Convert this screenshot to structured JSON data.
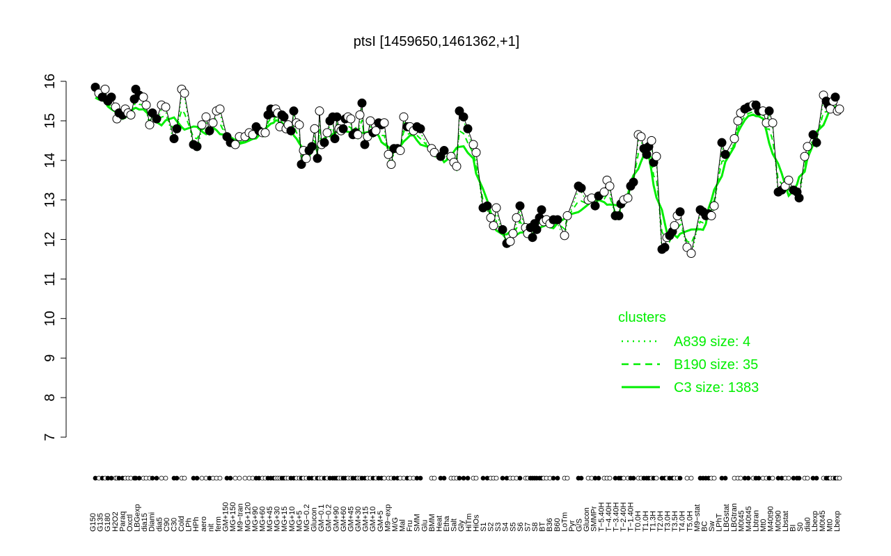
{
  "chart_data": {
    "type": "line",
    "title": "ptsI [1459650,1461362,+1]",
    "ylim": [
      7,
      16
    ],
    "yticks": [
      7,
      8,
      9,
      10,
      11,
      12,
      13,
      14,
      15,
      16
    ],
    "xlabels": [
      "G150",
      "G135",
      "G180",
      "H2O2",
      "Paraq",
      "Oxctl",
      "LBGexp",
      "dia15",
      "Diami",
      "dia5",
      "C90",
      "C30",
      "Cold",
      "LPh",
      "HPh",
      "aero",
      "nit",
      "ferm",
      "GM+150",
      "MG+150",
      "M9−tran",
      "MG+120",
      "MG+90",
      "MG+60",
      "MG+45",
      "MG+30",
      "MG+15",
      "MG+10",
      "MG+5",
      "MG−0.2",
      "Glucon",
      "GM−0.1",
      "GM−0.2",
      "GM+90",
      "GM+60",
      "GM+45",
      "GM+30",
      "GM+15",
      "GM+10",
      "GM+5",
      "M9−exp",
      "M/G",
      "Mal",
      "Fru",
      "SMM",
      "Glu",
      "BMM",
      "Heat",
      "Etha",
      "Salt",
      "Gly",
      "HiTm",
      "HiOs",
      "S1",
      "S2",
      "S3",
      "S4",
      "S5",
      "S6",
      "S7",
      "S8",
      "BT",
      "B36",
      "B60",
      "LoTm",
      "Pyr",
      "G/S",
      "Glucon",
      "SMMPr",
      "T−5.40H",
      "T−4.40H",
      "T−3.40H",
      "T−2.40H",
      "T−1.40H",
      "T0.0H",
      "T1.0H",
      "T1.3H",
      "T2.0H",
      "T3.0H",
      "T3.5H",
      "T4.0H",
      "T5.0H",
      "M9−stat",
      "BC",
      "Sw",
      "LPhT",
      "LBGstat",
      "LBGtran",
      "M0t45",
      "M40t45",
      "Lbtran",
      "Mt0",
      "M40t90",
      "M0t90",
      "Lbstat",
      "BI",
      "S0",
      "dia0",
      "Lbexp",
      "M0t45",
      "Mt0",
      "Lbexp"
    ],
    "points": [
      {
        "x": 137,
        "y": 15.85,
        "f": "k"
      },
      {
        "x": 142,
        "y": 15.7,
        "f": "w"
      },
      {
        "x": 147,
        "y": 15.6,
        "f": "k"
      },
      {
        "x": 151,
        "y": 15.8,
        "f": "w"
      },
      {
        "x": 155,
        "y": 15.5,
        "f": "k"
      },
      {
        "x": 160,
        "y": 15.6,
        "f": "k"
      },
      {
        "x": 166,
        "y": 15.35,
        "f": "w"
      },
      {
        "x": 168,
        "y": 15.05,
        "f": "w"
      },
      {
        "x": 171,
        "y": 15.2,
        "f": "k"
      },
      {
        "x": 176,
        "y": 15.15,
        "f": "k"
      },
      {
        "x": 180,
        "y": 15.3,
        "f": "w"
      },
      {
        "x": 184,
        "y": 15.2,
        "f": "w"
      },
      {
        "x": 188,
        "y": 15.15,
        "f": "w"
      },
      {
        "x": 193,
        "y": 15.55,
        "f": "k"
      },
      {
        "x": 195,
        "y": 15.8,
        "f": "k"
      },
      {
        "x": 200,
        "y": 15.65,
        "f": "k"
      },
      {
        "x": 206,
        "y": 15.6,
        "f": "w"
      },
      {
        "x": 210,
        "y": 15.4,
        "f": "w"
      },
      {
        "x": 215,
        "y": 14.9,
        "f": "w"
      },
      {
        "x": 219,
        "y": 15.2,
        "f": "k"
      },
      {
        "x": 225,
        "y": 15.05,
        "f": "k"
      },
      {
        "x": 232,
        "y": 15.4,
        "f": "w"
      },
      {
        "x": 238,
        "y": 15.35,
        "f": "w"
      },
      {
        "x": 250,
        "y": 14.55,
        "f": "k"
      },
      {
        "x": 254,
        "y": 14.8,
        "f": "k"
      },
      {
        "x": 261,
        "y": 15.8,
        "f": "w"
      },
      {
        "x": 265,
        "y": 15.7,
        "f": "w"
      },
      {
        "x": 278,
        "y": 14.4,
        "f": "k"
      },
      {
        "x": 283,
        "y": 14.35,
        "f": "k"
      },
      {
        "x": 290,
        "y": 14.9,
        "f": "w"
      },
      {
        "x": 296,
        "y": 15.1,
        "f": "w"
      },
      {
        "x": 301,
        "y": 14.75,
        "f": "k"
      },
      {
        "x": 306,
        "y": 14.95,
        "f": "w"
      },
      {
        "x": 311,
        "y": 15.25,
        "f": "w"
      },
      {
        "x": 316,
        "y": 15.3,
        "f": "w"
      },
      {
        "x": 326,
        "y": 14.6,
        "f": "k"
      },
      {
        "x": 331,
        "y": 14.45,
        "f": "k"
      },
      {
        "x": 338,
        "y": 14.4,
        "f": "w"
      },
      {
        "x": 344,
        "y": 14.6,
        "f": "w"
      },
      {
        "x": 352,
        "y": 14.6,
        "f": "w"
      },
      {
        "x": 358,
        "y": 14.7,
        "f": "w"
      },
      {
        "x": 363,
        "y": 14.65,
        "f": "w"
      },
      {
        "x": 368,
        "y": 14.85,
        "f": "k"
      },
      {
        "x": 372,
        "y": 14.75,
        "f": "k"
      },
      {
        "x": 377,
        "y": 14.7,
        "f": "w"
      },
      {
        "x": 381,
        "y": 14.7,
        "f": "w"
      },
      {
        "x": 385,
        "y": 15.15,
        "f": "k"
      },
      {
        "x": 389,
        "y": 15.3,
        "f": "k"
      },
      {
        "x": 393,
        "y": 15.2,
        "f": "k"
      },
      {
        "x": 396,
        "y": 15.3,
        "f": "w"
      },
      {
        "x": 399,
        "y": 15.2,
        "f": "w"
      },
      {
        "x": 402,
        "y": 14.85,
        "f": "w"
      },
      {
        "x": 405,
        "y": 15.15,
        "f": "k"
      },
      {
        "x": 408,
        "y": 15.1,
        "f": "k"
      },
      {
        "x": 411,
        "y": 14.8,
        "f": "w"
      },
      {
        "x": 414,
        "y": 14.9,
        "f": "w"
      },
      {
        "x": 418,
        "y": 14.75,
        "f": "k"
      },
      {
        "x": 422,
        "y": 15.25,
        "f": "k"
      },
      {
        "x": 426,
        "y": 14.95,
        "f": "w"
      },
      {
        "x": 430,
        "y": 14.9,
        "f": "w"
      },
      {
        "x": 433,
        "y": 13.9,
        "f": "k"
      },
      {
        "x": 436,
        "y": 14.25,
        "f": "w"
      },
      {
        "x": 440,
        "y": 14.05,
        "f": "w"
      },
      {
        "x": 444,
        "y": 14.25,
        "f": "k"
      },
      {
        "x": 448,
        "y": 14.35,
        "f": "k"
      },
      {
        "x": 452,
        "y": 14.8,
        "f": "w"
      },
      {
        "x": 456,
        "y": 14.05,
        "f": "k"
      },
      {
        "x": 459,
        "y": 15.25,
        "f": "w"
      },
      {
        "x": 462,
        "y": 14.4,
        "f": "w"
      },
      {
        "x": 466,
        "y": 14.45,
        "f": "k"
      },
      {
        "x": 470,
        "y": 14.7,
        "f": "w"
      },
      {
        "x": 474,
        "y": 15.0,
        "f": "k"
      },
      {
        "x": 478,
        "y": 15.1,
        "f": "k"
      },
      {
        "x": 481,
        "y": 14.55,
        "f": "k"
      },
      {
        "x": 484,
        "y": 15.1,
        "f": "k"
      },
      {
        "x": 487,
        "y": 14.8,
        "f": "w"
      },
      {
        "x": 490,
        "y": 14.75,
        "f": "w"
      },
      {
        "x": 493,
        "y": 14.8,
        "f": "k"
      },
      {
        "x": 496,
        "y": 15.05,
        "f": "k"
      },
      {
        "x": 500,
        "y": 15.1,
        "f": "w"
      },
      {
        "x": 504,
        "y": 15.05,
        "f": "w"
      },
      {
        "x": 507,
        "y": 14.65,
        "f": "k"
      },
      {
        "x": 511,
        "y": 14.7,
        "f": "k"
      },
      {
        "x": 514,
        "y": 14.65,
        "f": "w"
      },
      {
        "x": 517,
        "y": 15.15,
        "f": "w"
      },
      {
        "x": 520,
        "y": 15.45,
        "f": "k"
      },
      {
        "x": 524,
        "y": 14.4,
        "f": "k"
      },
      {
        "x": 528,
        "y": 14.6,
        "f": "w"
      },
      {
        "x": 532,
        "y": 15.0,
        "f": "w"
      },
      {
        "x": 536,
        "y": 14.7,
        "f": "k"
      },
      {
        "x": 540,
        "y": 14.75,
        "f": "w"
      },
      {
        "x": 544,
        "y": 14.95,
        "f": "k"
      },
      {
        "x": 548,
        "y": 14.9,
        "f": "k"
      },
      {
        "x": 552,
        "y": 14.95,
        "f": "w"
      },
      {
        "x": 558,
        "y": 14.15,
        "f": "w"
      },
      {
        "x": 562,
        "y": 13.9,
        "f": "w"
      },
      {
        "x": 566,
        "y": 14.3,
        "f": "k"
      },
      {
        "x": 571,
        "y": 14.3,
        "f": "k"
      },
      {
        "x": 575,
        "y": 14.25,
        "f": "w"
      },
      {
        "x": 580,
        "y": 15.1,
        "f": "w"
      },
      {
        "x": 585,
        "y": 14.85,
        "f": "k"
      },
      {
        "x": 589,
        "y": 14.85,
        "f": "w"
      },
      {
        "x": 594,
        "y": 14.75,
        "f": "w"
      },
      {
        "x": 599,
        "y": 14.85,
        "f": "k"
      },
      {
        "x": 604,
        "y": 14.8,
        "f": "k"
      },
      {
        "x": 620,
        "y": 14.3,
        "f": "w"
      },
      {
        "x": 624,
        "y": 14.2,
        "f": "w"
      },
      {
        "x": 633,
        "y": 14.1,
        "f": "k"
      },
      {
        "x": 638,
        "y": 14.25,
        "f": "k"
      },
      {
        "x": 648,
        "y": 14.1,
        "f": "w"
      },
      {
        "x": 652,
        "y": 13.95,
        "f": "w"
      },
      {
        "x": 656,
        "y": 13.85,
        "f": "w"
      },
      {
        "x": 660,
        "y": 15.25,
        "f": "k"
      },
      {
        "x": 666,
        "y": 15.1,
        "f": "k"
      },
      {
        "x": 672,
        "y": 14.8,
        "f": "k"
      },
      {
        "x": 680,
        "y": 14.4,
        "f": "w"
      },
      {
        "x": 684,
        "y": 14.2,
        "f": "w"
      },
      {
        "x": 694,
        "y": 12.8,
        "f": "k"
      },
      {
        "x": 700,
        "y": 12.85,
        "f": "k"
      },
      {
        "x": 705,
        "y": 12.55,
        "f": "w"
      },
      {
        "x": 709,
        "y": 12.35,
        "f": "w"
      },
      {
        "x": 713,
        "y": 12.8,
        "f": "w"
      },
      {
        "x": 722,
        "y": 12.25,
        "f": "k"
      },
      {
        "x": 728,
        "y": 11.9,
        "f": "k"
      },
      {
        "x": 733,
        "y": 11.95,
        "f": "w"
      },
      {
        "x": 737,
        "y": 12.15,
        "f": "w"
      },
      {
        "x": 742,
        "y": 12.55,
        "f": "w"
      },
      {
        "x": 747,
        "y": 12.85,
        "f": "k"
      },
      {
        "x": 755,
        "y": 12.3,
        "f": "w"
      },
      {
        "x": 758,
        "y": 12.15,
        "f": "w"
      },
      {
        "x": 762,
        "y": 12.3,
        "f": "k"
      },
      {
        "x": 765,
        "y": 12.05,
        "f": "k"
      },
      {
        "x": 768,
        "y": 12.4,
        "f": "k"
      },
      {
        "x": 771,
        "y": 12.25,
        "f": "k"
      },
      {
        "x": 775,
        "y": 12.55,
        "f": "k"
      },
      {
        "x": 778,
        "y": 12.75,
        "f": "k"
      },
      {
        "x": 781,
        "y": 12.45,
        "f": "w"
      },
      {
        "x": 785,
        "y": 12.5,
        "f": "w"
      },
      {
        "x": 790,
        "y": 12.4,
        "f": "w"
      },
      {
        "x": 795,
        "y": 12.5,
        "f": "k"
      },
      {
        "x": 801,
        "y": 12.5,
        "f": "k"
      },
      {
        "x": 811,
        "y": 12.1,
        "f": "w"
      },
      {
        "x": 815,
        "y": 12.6,
        "f": "w"
      },
      {
        "x": 831,
        "y": 13.35,
        "f": "k"
      },
      {
        "x": 835,
        "y": 13.3,
        "f": "k"
      },
      {
        "x": 845,
        "y": 13.0,
        "f": "w"
      },
      {
        "x": 850,
        "y": 13.05,
        "f": "w"
      },
      {
        "x": 855,
        "y": 12.85,
        "f": "k"
      },
      {
        "x": 860,
        "y": 13.1,
        "f": "k"
      },
      {
        "x": 868,
        "y": 13.2,
        "f": "w"
      },
      {
        "x": 872,
        "y": 13.5,
        "f": "w"
      },
      {
        "x": 876,
        "y": 13.35,
        "f": "w"
      },
      {
        "x": 884,
        "y": 12.6,
        "f": "k"
      },
      {
        "x": 889,
        "y": 12.6,
        "f": "k"
      },
      {
        "x": 892,
        "y": 12.9,
        "f": "k"
      },
      {
        "x": 896,
        "y": 13.0,
        "f": "w"
      },
      {
        "x": 902,
        "y": 13.05,
        "f": "w"
      },
      {
        "x": 906,
        "y": 13.35,
        "f": "k"
      },
      {
        "x": 910,
        "y": 13.45,
        "f": "k"
      },
      {
        "x": 917,
        "y": 14.65,
        "f": "w"
      },
      {
        "x": 921,
        "y": 14.6,
        "f": "w"
      },
      {
        "x": 925,
        "y": 14.3,
        "f": "k"
      },
      {
        "x": 929,
        "y": 14.15,
        "f": "k"
      },
      {
        "x": 932,
        "y": 14.35,
        "f": "k"
      },
      {
        "x": 936,
        "y": 14.5,
        "f": "w"
      },
      {
        "x": 939,
        "y": 13.95,
        "f": "k"
      },
      {
        "x": 943,
        "y": 14.1,
        "f": "w"
      },
      {
        "x": 951,
        "y": 11.75,
        "f": "k"
      },
      {
        "x": 955,
        "y": 11.8,
        "f": "k"
      },
      {
        "x": 958,
        "y": 12.05,
        "f": "w"
      },
      {
        "x": 962,
        "y": 12.1,
        "f": "k"
      },
      {
        "x": 966,
        "y": 12.2,
        "f": "k"
      },
      {
        "x": 969,
        "y": 12.35,
        "f": "w"
      },
      {
        "x": 973,
        "y": 12.6,
        "f": "w"
      },
      {
        "x": 977,
        "y": 12.7,
        "f": "k"
      },
      {
        "x": 987,
        "y": 11.8,
        "f": "w"
      },
      {
        "x": 993,
        "y": 11.65,
        "f": "w"
      },
      {
        "x": 1006,
        "y": 12.75,
        "f": "k"
      },
      {
        "x": 1010,
        "y": 12.7,
        "f": "k"
      },
      {
        "x": 1014,
        "y": 12.6,
        "f": "k"
      },
      {
        "x": 1018,
        "y": 12.65,
        "f": "k"
      },
      {
        "x": 1022,
        "y": 12.6,
        "f": "w"
      },
      {
        "x": 1026,
        "y": 12.85,
        "f": "w"
      },
      {
        "x": 1037,
        "y": 14.45,
        "f": "k"
      },
      {
        "x": 1042,
        "y": 14.15,
        "f": "k"
      },
      {
        "x": 1055,
        "y": 14.55,
        "f": "w"
      },
      {
        "x": 1060,
        "y": 15.0,
        "f": "w"
      },
      {
        "x": 1064,
        "y": 15.2,
        "f": "w"
      },
      {
        "x": 1070,
        "y": 15.3,
        "f": "k"
      },
      {
        "x": 1075,
        "y": 15.35,
        "f": "k"
      },
      {
        "x": 1082,
        "y": 15.4,
        "f": "w"
      },
      {
        "x": 1086,
        "y": 15.4,
        "f": "k"
      },
      {
        "x": 1090,
        "y": 15.25,
        "f": "k"
      },
      {
        "x": 1096,
        "y": 15.25,
        "f": "w"
      },
      {
        "x": 1101,
        "y": 14.95,
        "f": "w"
      },
      {
        "x": 1105,
        "y": 15.25,
        "f": "k"
      },
      {
        "x": 1110,
        "y": 14.95,
        "f": "w"
      },
      {
        "x": 1118,
        "y": 13.2,
        "f": "k"
      },
      {
        "x": 1123,
        "y": 13.25,
        "f": "k"
      },
      {
        "x": 1128,
        "y": 13.35,
        "f": "w"
      },
      {
        "x": 1133,
        "y": 13.5,
        "f": "w"
      },
      {
        "x": 1140,
        "y": 13.25,
        "f": "k"
      },
      {
        "x": 1145,
        "y": 13.2,
        "f": "k"
      },
      {
        "x": 1148,
        "y": 13.05,
        "f": "k"
      },
      {
        "x": 1156,
        "y": 14.1,
        "f": "w"
      },
      {
        "x": 1160,
        "y": 14.35,
        "f": "w"
      },
      {
        "x": 1168,
        "y": 14.65,
        "f": "k"
      },
      {
        "x": 1173,
        "y": 14.45,
        "f": "k"
      },
      {
        "x": 1183,
        "y": 15.65,
        "f": "w"
      },
      {
        "x": 1187,
        "y": 15.5,
        "f": "k"
      },
      {
        "x": 1190,
        "y": 15.4,
        "f": "k"
      },
      {
        "x": 1193,
        "y": 15.3,
        "f": "w"
      },
      {
        "x": 1197,
        "y": 15.5,
        "f": "w"
      },
      {
        "x": 1200,
        "y": 15.6,
        "f": "k"
      },
      {
        "x": 1203,
        "y": 15.25,
        "f": "w"
      },
      {
        "x": 1206,
        "y": 15.3,
        "f": "w"
      }
    ],
    "legend": {
      "title": "clusters",
      "position": "right-middle",
      "items": [
        {
          "label": "A839 size: 4",
          "dash": "dotted"
        },
        {
          "label": "B190 size: 35",
          "dash": "dashed"
        },
        {
          "label": "C3 size: 1383",
          "dash": "solid"
        }
      ]
    },
    "colors": {
      "series": "#00ee00",
      "axis": "#000000",
      "point_fill_black": "#000000",
      "point_fill_white": "#ffffff"
    }
  }
}
